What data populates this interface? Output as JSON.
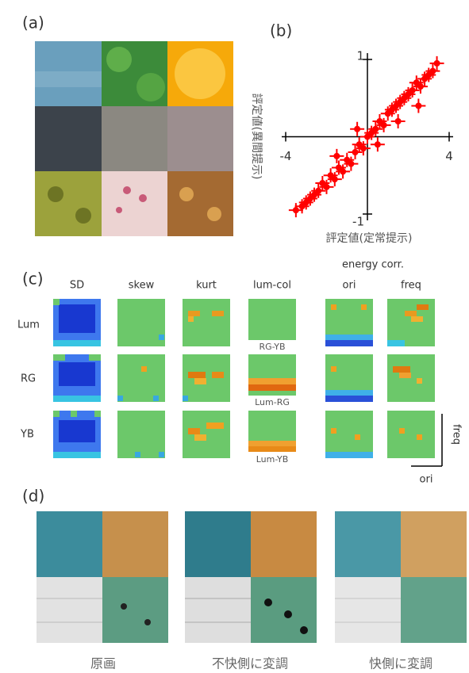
{
  "panel_a": {
    "label": "(a)"
  },
  "panel_b": {
    "label": "(b)"
  },
  "chart_data": {
    "type": "scatter",
    "x_label": "評定値(定常提示)",
    "y_label": "評定値(異間提示)",
    "xlim": [
      -4,
      4
    ],
    "ylim": [
      -1,
      1
    ],
    "xticks": [
      -4,
      4
    ],
    "yticks": [
      1,
      -1
    ],
    "color": "#ff0000",
    "x": [
      -3.5,
      -3.2,
      -3.0,
      -2.8,
      -2.6,
      -2.4,
      -2.2,
      -2.0,
      -1.8,
      -1.6,
      -1.4,
      -1.2,
      -1.0,
      -0.8,
      -0.6,
      -0.4,
      -0.2,
      0.0,
      0.2,
      0.4,
      0.6,
      0.8,
      1.0,
      1.2,
      1.4,
      1.6,
      1.8,
      2.0,
      2.2,
      2.4,
      2.6,
      2.8,
      3.0,
      3.2,
      3.4,
      -1.5,
      -0.5,
      0.5,
      1.5,
      2.5
    ],
    "y": [
      -0.95,
      -0.9,
      -0.85,
      -0.8,
      -0.75,
      -0.7,
      -0.6,
      -0.65,
      -0.5,
      -0.55,
      -0.4,
      -0.45,
      -0.3,
      -0.35,
      -0.2,
      -0.1,
      -0.15,
      0.0,
      0.05,
      0.1,
      0.2,
      0.15,
      0.3,
      0.35,
      0.4,
      0.45,
      0.5,
      0.55,
      0.6,
      0.7,
      0.65,
      0.75,
      0.8,
      0.85,
      0.95,
      -0.25,
      0.1,
      -0.1,
      0.2,
      0.4
    ]
  },
  "panel_c": {
    "label": "(c)",
    "group_label": "energy corr.",
    "columns": [
      "SD",
      "skew",
      "kurt",
      "lum-col",
      "ori",
      "freq"
    ],
    "rows": [
      "Lum",
      "RG",
      "YB"
    ],
    "sub_labels": [
      "RG-YB",
      "Lum-RG",
      "Lum-YB"
    ],
    "axis_x": "ori",
    "axis_y": "freq"
  },
  "panel_d": {
    "label": "(d)",
    "captions": [
      "原画",
      "不快側に変調",
      "快側に変調"
    ]
  }
}
